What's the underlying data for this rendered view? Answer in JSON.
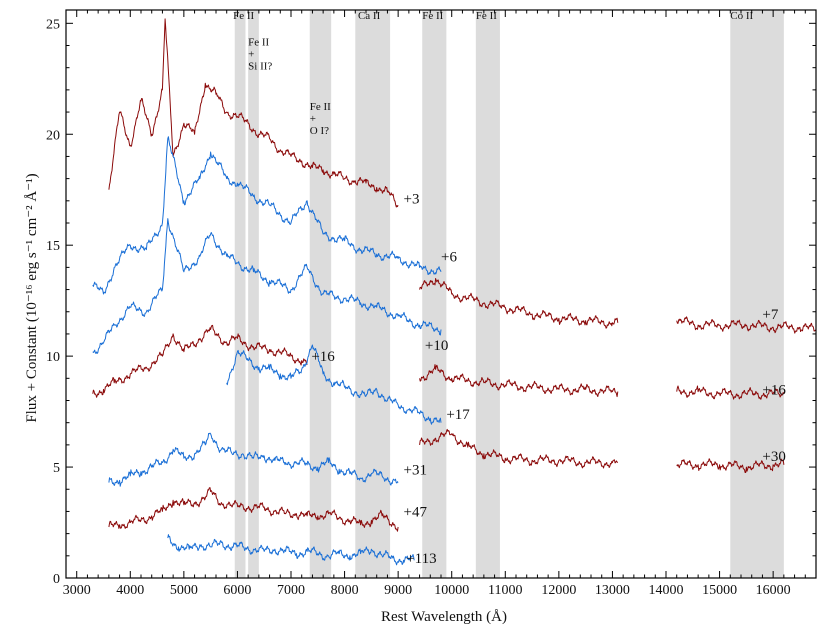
{
  "chart_data": {
    "type": "line",
    "xlabel": "Rest Wavelength (Å)",
    "ylabel": "Flux + Constant (10⁻¹⁶ erg s⁻¹ cm⁻² Å⁻¹)",
    "xlim": [
      2800,
      16800
    ],
    "ylim": [
      0,
      25.6
    ],
    "xticks": [
      3000,
      4000,
      5000,
      6000,
      7000,
      8000,
      9000,
      10000,
      11000,
      12000,
      13000,
      14000,
      15000,
      16000
    ],
    "yticks": [
      0,
      5,
      10,
      15,
      20,
      25
    ],
    "grid": false,
    "legend": "none",
    "colors": {
      "red": "#8b0a0a",
      "blue": "#1a6fd6",
      "band": "#dcdcdc"
    },
    "bands": [
      {
        "x0": 5950,
        "x1": 6150,
        "label": [
          "Fe II"
        ],
        "label_x": 5920,
        "label_y": 25.2
      },
      {
        "x0": 6200,
        "x1": 6400,
        "label": [
          "Fe II",
          "+",
          "Si II?"
        ],
        "label_x": 6200,
        "label_y": 24.0
      },
      {
        "x0": 7350,
        "x1": 7750,
        "label": [
          "Fe II",
          "+",
          "O I?"
        ],
        "label_x": 7350,
        "label_y": 21.1
      },
      {
        "x0": 8200,
        "x1": 8850,
        "label": [
          "Ca II"
        ],
        "label_x": 8250,
        "label_y": 25.2
      },
      {
        "x0": 9450,
        "x1": 9900,
        "label": [
          "Fe II"
        ],
        "label_x": 9450,
        "label_y": 25.2
      },
      {
        "x0": 10450,
        "x1": 10900,
        "label": [
          "Fe II"
        ],
        "label_x": 10450,
        "label_y": 25.2
      },
      {
        "x0": 15200,
        "x1": 16200,
        "label": [
          "Co II"
        ],
        "label_x": 15200,
        "label_y": 25.2
      }
    ],
    "series": [
      {
        "label": "+3",
        "color": "red",
        "label_pos": [
          9100,
          17.1
        ],
        "x": [
          3600,
          3800,
          4000,
          4200,
          4400,
          4600,
          4650,
          4800,
          5000,
          5200,
          5400,
          5600,
          5800,
          6000,
          6200,
          6400,
          6600,
          6800,
          7000,
          7200,
          7400,
          7600,
          7800,
          8000,
          8200,
          8400,
          8600,
          8800,
          9000
        ],
        "y": [
          17.5,
          21.0,
          19.5,
          21.5,
          20.0,
          22.0,
          25.2,
          19.0,
          20.5,
          20.0,
          22.3,
          21.8,
          21.0,
          20.8,
          20.5,
          20.0,
          19.8,
          19.3,
          19.0,
          18.8,
          18.5,
          18.4,
          18.2,
          18.0,
          17.9,
          17.8,
          17.6,
          17.4,
          16.8
        ]
      },
      {
        "label": "+6",
        "color": "blue",
        "label_pos": [
          9800,
          14.5
        ],
        "x": [
          3300,
          3500,
          3700,
          4000,
          4300,
          4600,
          4700,
          5000,
          5300,
          5500,
          5800,
          6000,
          6300,
          6600,
          7000,
          7300,
          7600,
          8000,
          8300,
          8600,
          9000,
          9400,
          9800
        ],
        "y": [
          13.2,
          12.8,
          14.0,
          15.0,
          14.8,
          16.0,
          19.8,
          17.0,
          18.0,
          19.2,
          18.0,
          17.8,
          17.2,
          16.8,
          16.0,
          17.0,
          15.5,
          15.2,
          14.8,
          14.6,
          14.4,
          14.0,
          13.8
        ]
      },
      {
        "label": "+7",
        "color": "red",
        "label_pos": [
          15800,
          11.9
        ],
        "segments": [
          {
            "x": [
              9400,
              9700,
              10000,
              10300,
              10600,
              11000,
              11500,
              12000,
              12500,
              13000,
              13100
            ],
            "y": [
              13.0,
              13.5,
              12.8,
              12.6,
              12.4,
              12.2,
              11.9,
              11.7,
              11.6,
              11.5,
              11.5
            ]
          },
          {
            "x": [
              14200,
              14600,
              15000,
              15500,
              16000,
              16500,
              16800
            ],
            "y": [
              11.6,
              11.4,
              11.4,
              11.4,
              11.3,
              11.3,
              11.2
            ]
          }
        ]
      },
      {
        "label": "+10",
        "color": "blue",
        "label_pos": [
          9500,
          10.5
        ],
        "x": [
          3300,
          3500,
          3700,
          4000,
          4300,
          4600,
          4700,
          5000,
          5300,
          5500,
          5800,
          6000,
          6300,
          6600,
          7000,
          7300,
          7600,
          8000,
          8300,
          8600,
          9000,
          9400,
          9800
        ],
        "y": [
          10.2,
          10.6,
          11.4,
          12.2,
          12.0,
          13.0,
          16.2,
          13.8,
          14.5,
          15.5,
          14.5,
          14.2,
          13.8,
          13.4,
          13.0,
          14.0,
          12.8,
          12.6,
          12.4,
          12.2,
          11.8,
          11.4,
          11.2
        ]
      },
      {
        "label": "+16",
        "color": "red",
        "label_pos": [
          7380,
          10.0
        ],
        "x": [
          3300,
          3500,
          3700,
          4000,
          4300,
          4600,
          4800,
          5000,
          5300,
          5500,
          5800,
          6000,
          6300,
          6600,
          7000,
          7200,
          7300
        ],
        "y": [
          8.3,
          8.5,
          8.8,
          9.2,
          9.5,
          10.0,
          11.0,
          10.2,
          10.8,
          11.2,
          10.6,
          10.8,
          10.4,
          10.3,
          10.0,
          9.8,
          9.6
        ]
      },
      {
        "label": "+16",
        "color": "red",
        "label_pos": [
          15800,
          8.5
        ],
        "segments": [
          {
            "x": [
              9400,
              9700,
              10000,
              10300,
              10600,
              11000,
              11500,
              12000,
              12500,
              13000,
              13100
            ],
            "y": [
              9.0,
              9.4,
              9.0,
              8.9,
              8.8,
              8.7,
              8.6,
              8.5,
              8.5,
              8.4,
              8.4
            ]
          },
          {
            "x": [
              14200,
              14600,
              15000,
              15500,
              16000,
              16200
            ],
            "y": [
              8.4,
              8.4,
              8.3,
              8.3,
              8.3,
              8.3
            ]
          }
        ]
      },
      {
        "label": "+17",
        "color": "blue",
        "label_pos": [
          9900,
          7.4
        ],
        "x": [
          5800,
          6000,
          6200,
          6400,
          6600,
          6800,
          7000,
          7200,
          7400,
          7600,
          7800,
          8000,
          8200,
          8400,
          8600,
          8800,
          9000,
          9200,
          9400,
          9600,
          9800
        ],
        "y": [
          8.8,
          10.2,
          9.8,
          9.5,
          9.4,
          9.2,
          9.0,
          9.4,
          10.5,
          9.2,
          8.8,
          8.6,
          8.4,
          8.2,
          8.5,
          8.0,
          7.8,
          7.6,
          7.4,
          7.2,
          7.0
        ]
      },
      {
        "label": "+30",
        "color": "red",
        "label_pos": [
          15800,
          5.5
        ],
        "segments": [
          {
            "x": [
              9400,
              9700,
              10000,
              10300,
              10600,
              11000,
              11500,
              12000,
              12500,
              13000,
              13100
            ],
            "y": [
              6.0,
              6.3,
              6.5,
              5.9,
              5.6,
              5.4,
              5.3,
              5.3,
              5.2,
              5.2,
              5.2
            ]
          },
          {
            "x": [
              14200,
              14600,
              15000,
              15500,
              16000,
              16200
            ],
            "y": [
              5.1,
              5.1,
              5.1,
              5.0,
              5.1,
              5.1
            ]
          }
        ]
      },
      {
        "label": "+31",
        "color": "blue",
        "label_pos": [
          9100,
          4.9
        ],
        "x": [
          3600,
          3800,
          4000,
          4200,
          4400,
          4600,
          4800,
          5000,
          5200,
          5400,
          5500,
          5700,
          5900,
          6100,
          6300,
          6500,
          6700,
          6900,
          7100,
          7300,
          7500,
          7700,
          7900,
          8100,
          8300,
          8500,
          8700,
          8900,
          9000
        ],
        "y": [
          4.3,
          4.4,
          4.6,
          4.8,
          5.0,
          5.2,
          5.8,
          5.4,
          5.6,
          6.0,
          6.5,
          5.8,
          5.6,
          5.6,
          5.4,
          5.5,
          5.3,
          5.2,
          5.2,
          5.1,
          5.0,
          5.2,
          4.9,
          4.7,
          4.5,
          4.7,
          4.6,
          4.4,
          4.3
        ]
      },
      {
        "label": "+47",
        "color": "red",
        "label_pos": [
          9100,
          3.0
        ],
        "x": [
          3600,
          3800,
          4000,
          4200,
          4400,
          4600,
          4800,
          5000,
          5200,
          5400,
          5500,
          5700,
          5900,
          6100,
          6300,
          6500,
          6700,
          6900,
          7100,
          7300,
          7500,
          7700,
          7900,
          8100,
          8300,
          8500,
          8700,
          8900,
          9000
        ],
        "y": [
          2.3,
          2.4,
          2.5,
          2.6,
          2.8,
          3.0,
          3.5,
          3.3,
          3.4,
          3.6,
          3.9,
          3.4,
          3.2,
          3.3,
          3.1,
          3.2,
          3.0,
          2.9,
          2.9,
          2.8,
          2.8,
          2.9,
          2.7,
          2.6,
          2.4,
          2.6,
          2.8,
          2.5,
          2.3
        ]
      },
      {
        "label": "+113",
        "color": "blue",
        "label_pos": [
          9150,
          0.9
        ],
        "x": [
          4700,
          4900,
          5100,
          5300,
          5500,
          5700,
          5900,
          6100,
          6300,
          6500,
          6700,
          6900,
          7100,
          7300,
          7500,
          7700,
          7900,
          8100,
          8300,
          8500,
          8700,
          8900,
          9100,
          9300
        ],
        "y": [
          1.8,
          1.4,
          1.3,
          1.5,
          1.4,
          1.6,
          1.4,
          1.4,
          1.3,
          1.2,
          1.3,
          1.2,
          1.1,
          1.2,
          1.1,
          1.0,
          1.1,
          1.0,
          1.1,
          1.3,
          1.0,
          0.9,
          0.8,
          0.8
        ]
      }
    ]
  }
}
